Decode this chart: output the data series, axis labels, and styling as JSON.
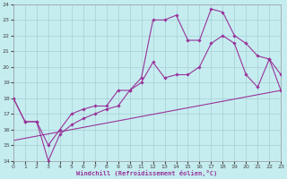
{
  "xlabel": "Windchill (Refroidissement éolien,°C)",
  "bg_color": "#c5edf0",
  "grid_color": "#a8d0d4",
  "line_color": "#993399",
  "xlim": [
    0,
    23
  ],
  "ylim": [
    14,
    24
  ],
  "xticks": [
    0,
    1,
    2,
    3,
    4,
    5,
    6,
    7,
    8,
    9,
    10,
    11,
    12,
    13,
    14,
    15,
    16,
    17,
    18,
    19,
    20,
    21,
    22,
    23
  ],
  "yticks": [
    14,
    15,
    16,
    17,
    18,
    19,
    20,
    21,
    22,
    23,
    24
  ],
  "line1_x": [
    0,
    1,
    2,
    3,
    4,
    5,
    6,
    7,
    8,
    9,
    10,
    11,
    12,
    13,
    14,
    15,
    16,
    17,
    18,
    19,
    20,
    21,
    22,
    23
  ],
  "line1_y": [
    18,
    16.5,
    16.5,
    15.0,
    16.0,
    17.0,
    17.3,
    17.5,
    17.5,
    18.5,
    18.5,
    19.3,
    23.0,
    23.0,
    23.3,
    21.7,
    21.7,
    23.7,
    23.5,
    22.0,
    21.5,
    20.7,
    20.5,
    19.5
  ],
  "line2_x": [
    0,
    1,
    2,
    3,
    4,
    5,
    6,
    7,
    8,
    9,
    10,
    11,
    12,
    13,
    14,
    15,
    16,
    17,
    18,
    19,
    20,
    21,
    22,
    23
  ],
  "line2_y": [
    18,
    16.5,
    16.5,
    14.0,
    15.7,
    16.3,
    16.7,
    17.0,
    17.3,
    17.5,
    18.5,
    19.0,
    20.3,
    19.3,
    19.5,
    19.5,
    20.0,
    21.5,
    22.0,
    21.5,
    19.5,
    18.7,
    20.5,
    18.5
  ],
  "line3_x": [
    0,
    23
  ],
  "line3_y": [
    15.3,
    18.5
  ]
}
